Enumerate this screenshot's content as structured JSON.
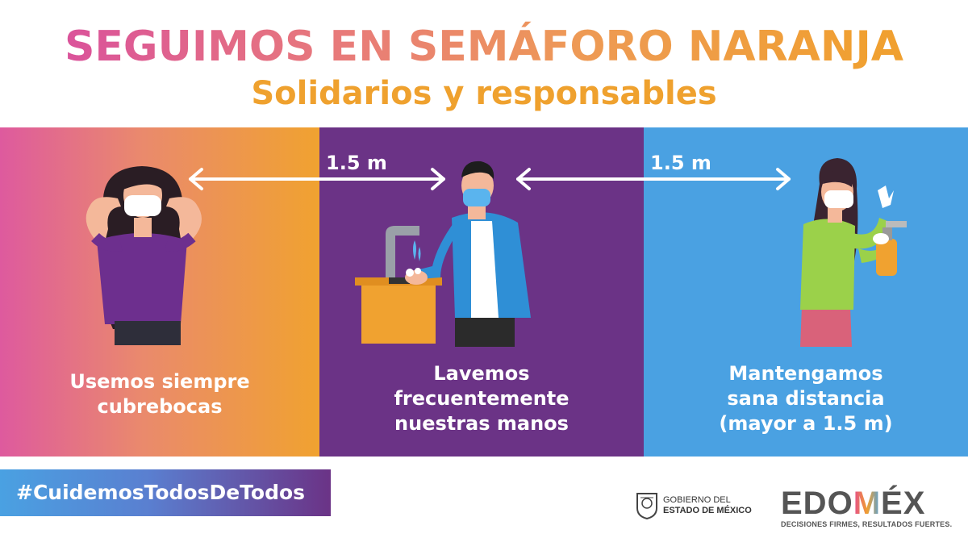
{
  "header": {
    "title": "SEGUIMOS EN SEMÁFORO NARANJA",
    "subtitle": "Solidarios y responsables"
  },
  "panels": [
    {
      "caption_lines": [
        "Usemos siempre",
        "cubrebocas"
      ],
      "color": "#f0a230"
    },
    {
      "caption_lines": [
        "Lavemos",
        "frecuentemente",
        "nuestras manos"
      ],
      "color": "#6b3386"
    },
    {
      "caption_lines": [
        "Mantengamos",
        "sana distancia",
        "(mayor a 1.5 m)"
      ],
      "color": "#4aa1e2"
    }
  ],
  "distances": [
    "1.5 m",
    "1.5 m"
  ],
  "footer": {
    "hashtag": "#CuidemosTodosDeTodos",
    "gov_line1": "GOBIERNO DEL",
    "gov_line2": "ESTADO DE MÉXICO",
    "brand_pre": "EDO",
    "brand_m": "M",
    "brand_post": "ÉX",
    "brand_tagline": "DECISIONES FIRMES, RESULTADOS FUERTES."
  },
  "icons": [
    "woman-mask-icon",
    "man-washing-hands-icon",
    "woman-gloves-spray-icon",
    "distance-arrow-icon",
    "state-seal-icon"
  ]
}
